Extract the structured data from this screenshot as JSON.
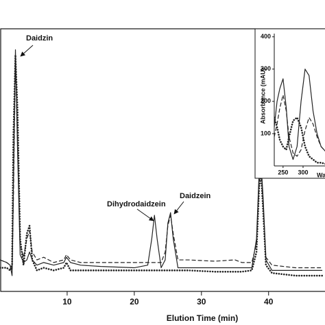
{
  "chart_data": [
    {
      "type": "line",
      "xlabel": "Elution Time (min)",
      "annotations": [
        "Daidzin",
        "Dihydrodaidzein",
        "Daidzein"
      ],
      "x": [
        0,
        1,
        1.5,
        1.8,
        2.0,
        2.3,
        2.6,
        3.0,
        3.5,
        4.0,
        4.4,
        4.8,
        5.5,
        6.5,
        8,
        9.5,
        9.9,
        10.5,
        12,
        15,
        20,
        22,
        22.6,
        23,
        23.4,
        24,
        24.6,
        25,
        25.4,
        25.8,
        26.5,
        28,
        32,
        35,
        36,
        37.5,
        38.2,
        38.6,
        38.9,
        39.2,
        39.6,
        40.5,
        44,
        48
      ],
      "xlim": [
        0,
        48.4
      ],
      "xticks": [
        10,
        20,
        30,
        40
      ],
      "ylim": [
        0,
        100
      ],
      "series": [
        {
          "color": "#222222",
          "style": "solid",
          "values": [
            12,
            11,
            10,
            6,
            40,
            92,
            55,
            14,
            11,
            12,
            15,
            12,
            10,
            11,
            10,
            11,
            13,
            11,
            10,
            9.5,
            9,
            10,
            20,
            29,
            20,
            9,
            12,
            26,
            30,
            20,
            9,
            9,
            9,
            9,
            9,
            9,
            20,
            46,
            48,
            35,
            12,
            8,
            8,
            8
          ]
        },
        {
          "color": "#222222",
          "style": "dashed",
          "values": [
            12,
            11,
            10,
            8,
            35,
            88,
            60,
            18,
            13,
            20,
            23,
            15,
            12,
            13,
            11,
            12,
            14,
            12,
            11,
            11,
            11,
            11,
            11,
            11,
            11,
            11,
            15,
            25,
            29,
            22,
            12,
            12,
            11.5,
            12,
            11,
            11,
            18,
            42,
            45,
            33,
            13,
            10,
            9,
            9
          ]
        },
        {
          "color": "#222222",
          "style": "dotted",
          "values": [
            9,
            9,
            8,
            10,
            60,
            90,
            70,
            20,
            10,
            22,
            25,
            12,
            8,
            9,
            8,
            9,
            11,
            8,
            8,
            8,
            8,
            8,
            8,
            8,
            8,
            8,
            8,
            8,
            8,
            8,
            8,
            8,
            7.5,
            7.5,
            7.5,
            8,
            15,
            40,
            44,
            30,
            10,
            7,
            6,
            6
          ]
        }
      ]
    },
    {
      "type": "line",
      "xlabel": "Wavelength (nm)",
      "ylabel": "Absorbance (mAU)",
      "x": [
        228,
        235,
        242,
        250,
        258,
        265,
        275,
        285,
        295,
        305,
        315,
        325,
        335,
        345,
        360
      ],
      "xlim": [
        228,
        360
      ],
      "xticks": [
        250,
        300
      ],
      "ylim": [
        0,
        410
      ],
      "yticks": [
        100,
        200,
        300,
        400
      ],
      "series": [
        {
          "color": "#222222",
          "style": "solid",
          "values": [
            120,
            200,
            240,
            270,
            180,
            60,
            20,
            60,
            200,
            300,
            280,
            170,
            100,
            60,
            40
          ]
        },
        {
          "color": "#222222",
          "style": "dashed",
          "values": [
            90,
            130,
            180,
            220,
            170,
            90,
            40,
            30,
            50,
            110,
            150,
            130,
            90,
            60,
            40
          ]
        },
        {
          "color": "#222222",
          "style": "dotted",
          "values": [
            150,
            120,
            80,
            60,
            50,
            90,
            140,
            150,
            120,
            60,
            30,
            20,
            10,
            10,
            5
          ]
        }
      ]
    }
  ]
}
